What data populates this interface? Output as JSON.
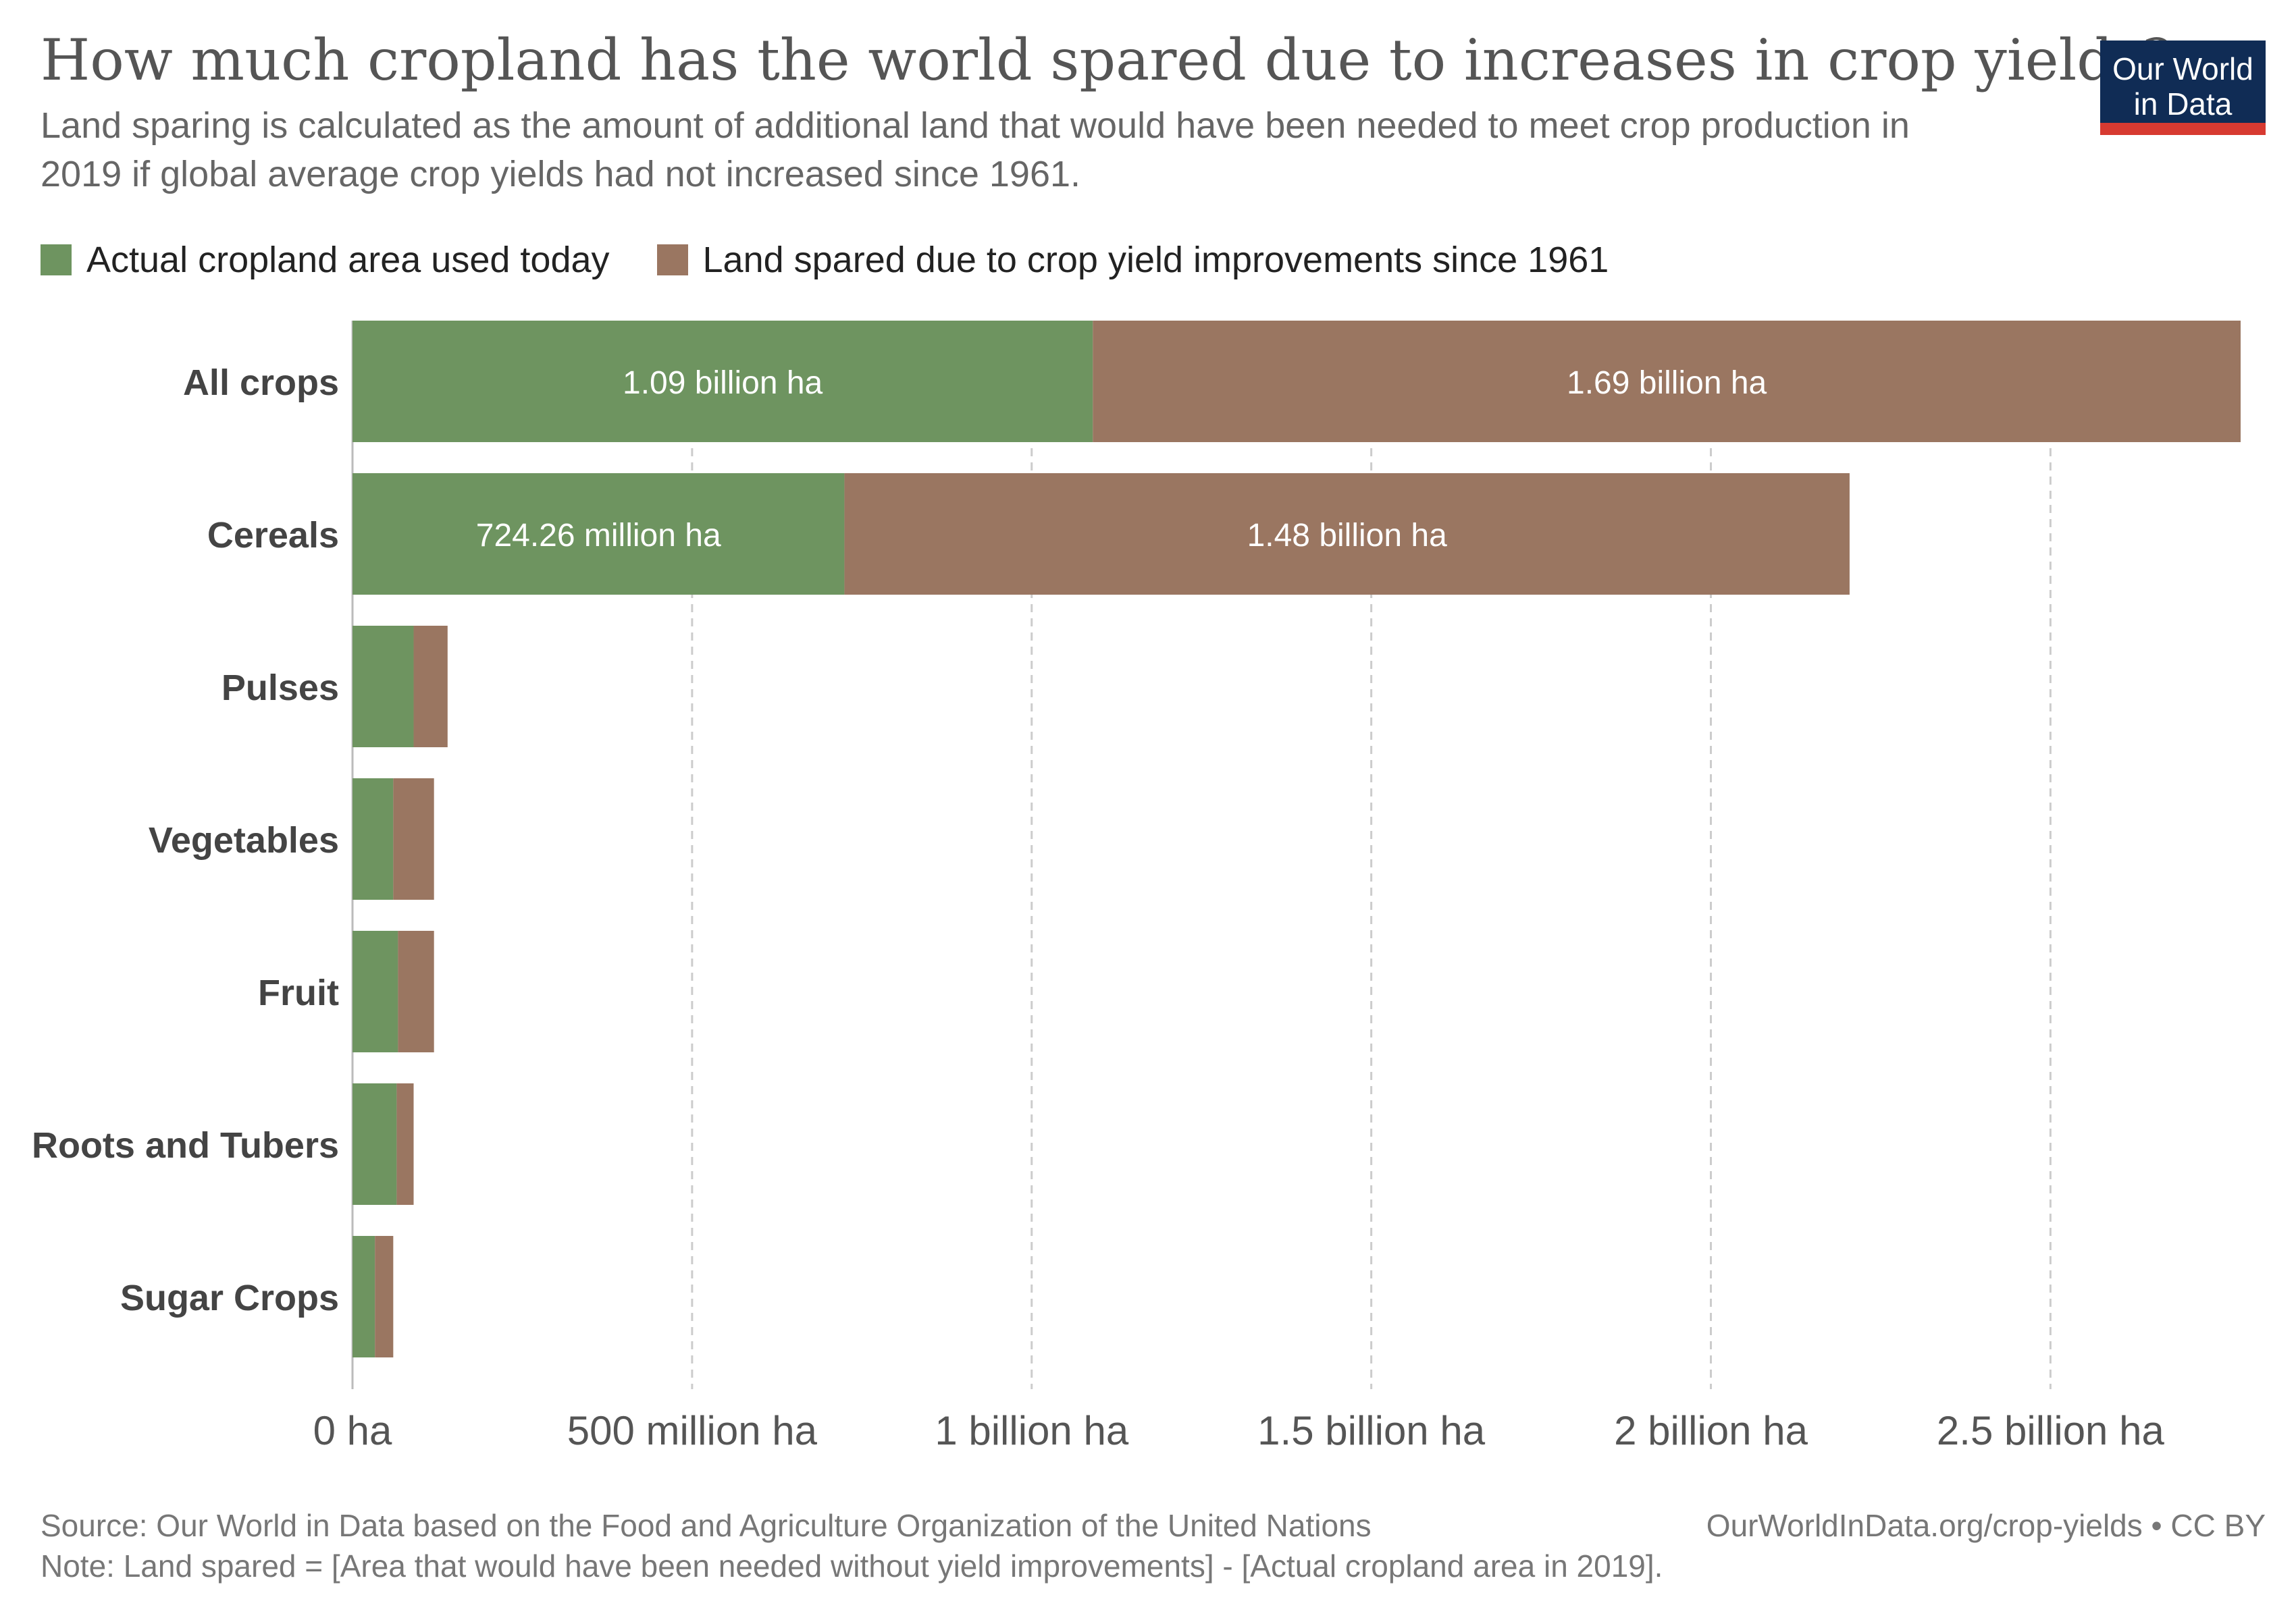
{
  "header": {
    "title": "How much cropland has the world spared due to increases in crop yields?",
    "subtitle": "Land sparing is calculated as the amount of additional land that would have been needed to meet crop production in 2019 if global average crop yields had not increased since 1961."
  },
  "logo": {
    "line1": "Our World",
    "line2": "in Data"
  },
  "footer": {
    "source": "Source: Our World in Data based on the Food and Agriculture Organization of the United Nations",
    "note": "Note: Land spared = [Area that would have been needed without yield improvements] - [Actual cropland area in 2019].",
    "link": "OurWorldInData.org/crop-yields • CC BY"
  },
  "colors": {
    "actual": "#6e9460",
    "spared": "#9a7661",
    "grid": "#cccccc",
    "axis_text": "#555555",
    "category_text": "#444444"
  },
  "chart_data": {
    "type": "bar",
    "orientation": "horizontal",
    "stacked": true,
    "categories": [
      "All crops",
      "Cereals",
      "Pulses",
      "Vegetables",
      "Fruit",
      "Roots and Tubers",
      "Sugar Crops"
    ],
    "series": [
      {
        "name": "Actual cropland area used today",
        "values": [
          1090000000,
          724260000,
          90000000,
          60000000,
          67000000,
          65000000,
          33000000
        ],
        "labels": [
          "1.09 billion ha",
          "724.26 million ha",
          "",
          "",
          "",
          "",
          ""
        ]
      },
      {
        "name": "Land spared due to crop yield improvements since 1961",
        "values": [
          1690000000,
          1480000000,
          50000000,
          60000000,
          53000000,
          25000000,
          27000000
        ],
        "labels": [
          "1.69 billion ha",
          "1.48 billion ha",
          "",
          "",
          "",
          "",
          ""
        ]
      }
    ],
    "xlim": [
      0,
      2780000000
    ],
    "xticks": [
      {
        "value": 0,
        "label": "0 ha"
      },
      {
        "value": 500000000,
        "label": "500 million ha"
      },
      {
        "value": 1000000000,
        "label": "1 billion ha"
      },
      {
        "value": 1500000000,
        "label": "1.5 billion ha"
      },
      {
        "value": 2000000000,
        "label": "2 billion ha"
      },
      {
        "value": 2500000000,
        "label": "2.5 billion ha"
      }
    ],
    "grid": "vertical-dashed",
    "legend_position": "top-left"
  }
}
